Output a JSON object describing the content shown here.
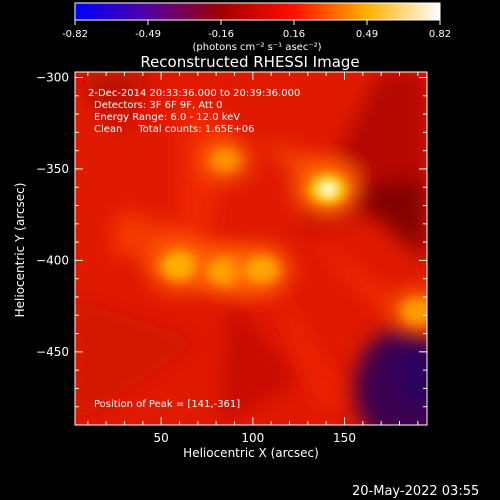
{
  "chart_data": {
    "type": "heatmap",
    "title": "Reconstructed RHESSI Image",
    "xlabel": "Heliocentric X (arcsec)",
    "ylabel": "Heliocentric Y (arcsec)",
    "xlim": [
      3,
      195
    ],
    "ylim": [
      -490,
      -297
    ],
    "x_ticks": [
      50,
      100,
      150
    ],
    "y_ticks": [
      -300,
      -350,
      -400,
      -450
    ],
    "colorbar": {
      "min": -0.82,
      "max": 0.82,
      "ticks": [
        "-0.82",
        "-0.49",
        "-0.16",
        "0.16",
        "0.49",
        "0.82"
      ],
      "label": "(photons cm⁻² s⁻¹ asec⁻²)",
      "colormap": [
        "#0000ff",
        "#4a0080",
        "#800000",
        "#e00000",
        "#ff6000",
        "#ffd000",
        "#ffffff"
      ]
    },
    "annotations": [
      "2-Dec-2014 20:33:36.000 to 20:39:36.000",
      "Detectors: 3F 6F 9F, Att 0",
      "Energy Range: 6.0 - 12.0 keV",
      "Clean     Total counts: 1.65E+06",
      "Position of Peak = [141,-361]"
    ],
    "peak": {
      "x": 141,
      "y": -361
    },
    "sources": [
      {
        "x": 141,
        "y": -361,
        "intensity": 0.82
      },
      {
        "x": 60,
        "y": -403,
        "intensity": 0.7
      },
      {
        "x": 85,
        "y": -406,
        "intensity": 0.62
      },
      {
        "x": 105,
        "y": -405,
        "intensity": 0.6
      },
      {
        "x": 190,
        "y": -428,
        "intensity": 0.55
      },
      {
        "x": 85,
        "y": -345,
        "intensity": 0.45
      }
    ]
  },
  "footer": {
    "date": "20-May-2022 03:55"
  }
}
